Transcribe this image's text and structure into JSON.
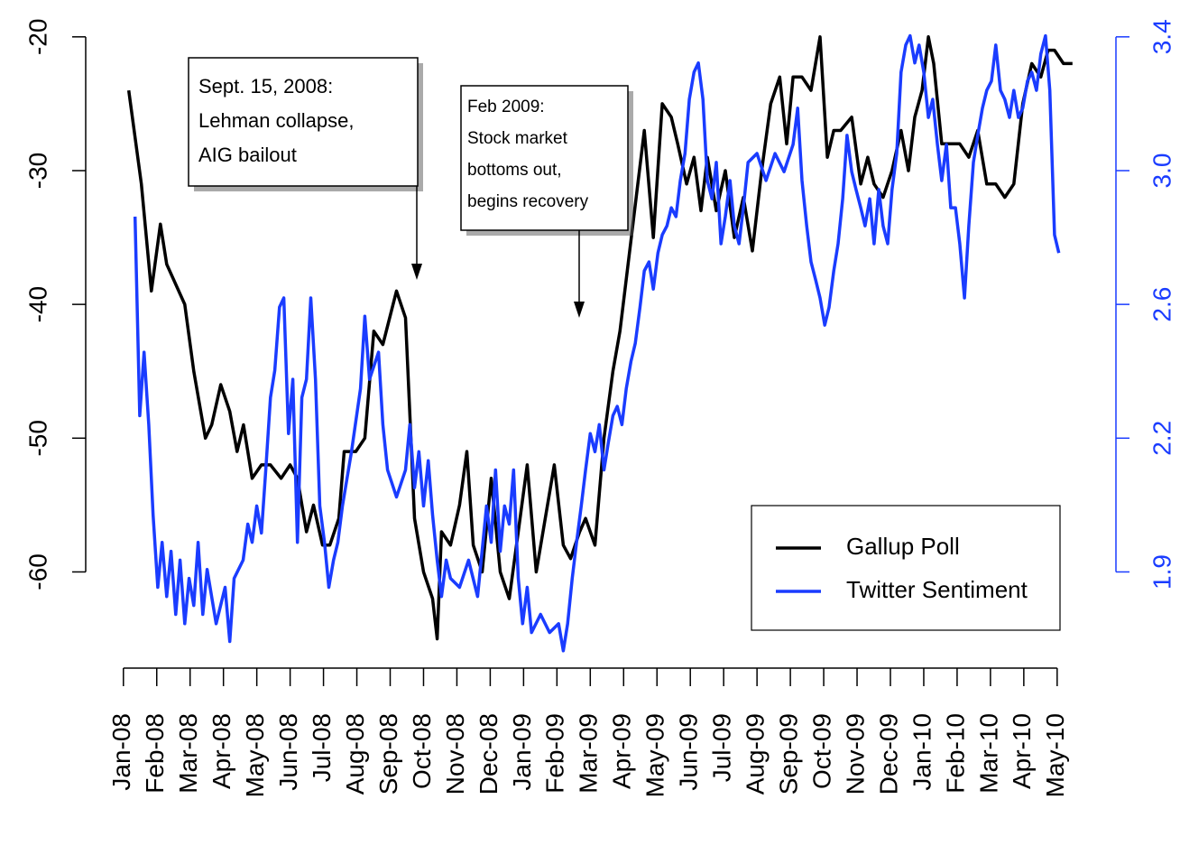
{
  "chart_data": {
    "type": "line",
    "xlim": [
      -0.4,
      28.6
    ],
    "xticks": [
      {
        "value": 0,
        "label": "Jan-08"
      },
      {
        "value": 1,
        "label": "Feb-08"
      },
      {
        "value": 2,
        "label": "Mar-08"
      },
      {
        "value": 3,
        "label": "Apr-08"
      },
      {
        "value": 4,
        "label": "May-08"
      },
      {
        "value": 5,
        "label": "Jun-08"
      },
      {
        "value": 6,
        "label": "Jul-08"
      },
      {
        "value": 7,
        "label": "Aug-08"
      },
      {
        "value": 8,
        "label": "Sep-08"
      },
      {
        "value": 9,
        "label": "Oct-08"
      },
      {
        "value": 10,
        "label": "Nov-08"
      },
      {
        "value": 11,
        "label": "Dec-08"
      },
      {
        "value": 12,
        "label": "Jan-09"
      },
      {
        "value": 13,
        "label": "Feb-09"
      },
      {
        "value": 14,
        "label": "Mar-09"
      },
      {
        "value": 15,
        "label": "Apr-09"
      },
      {
        "value": 16,
        "label": "May-09"
      },
      {
        "value": 17,
        "label": "Jun-09"
      },
      {
        "value": 18,
        "label": "Jul-09"
      },
      {
        "value": 19,
        "label": "Aug-09"
      },
      {
        "value": 20,
        "label": "Sep-09"
      },
      {
        "value": 21,
        "label": "Oct-09"
      },
      {
        "value": 22,
        "label": "Nov-09"
      },
      {
        "value": 23,
        "label": "Dec-09"
      },
      {
        "value": 24,
        "label": "Jan-10"
      },
      {
        "value": 25,
        "label": "Feb-10"
      },
      {
        "value": 26,
        "label": "Mar-10"
      },
      {
        "value": 27,
        "label": "Apr-10"
      },
      {
        "value": 28,
        "label": "May-10"
      }
    ],
    "ylim": [
      -68,
      -19
    ],
    "yticks": [
      -20,
      -30,
      -40,
      -50,
      -60
    ],
    "y2lim": [
      1.55,
      3.3875
    ],
    "y2ticks": [
      {
        "value": 3.35,
        "label": "3.4"
      },
      {
        "value": 2.975,
        "label": "3.0"
      },
      2.6,
      {
        "value": 2.225,
        "label": "2.2"
      },
      {
        "value": 1.85,
        "label": "1.9"
      }
    ],
    "y2color": "#1a3cff",
    "legend": "lower right",
    "series": [
      {
        "name": "Gallup Poll",
        "color": "#000000",
        "axis": "y",
        "x": [
          0.16,
          0.54,
          0.84,
          1.11,
          1.3,
          1.84,
          2.11,
          2.46,
          2.65,
          2.92,
          3.19,
          3.41,
          3.6,
          3.86,
          4.14,
          4.41,
          4.73,
          5.0,
          5.22,
          5.49,
          5.7,
          5.97,
          6.19,
          6.46,
          6.62,
          6.97,
          7.24,
          7.51,
          7.78,
          8.19,
          8.46,
          8.73,
          9.0,
          9.27,
          9.41,
          9.54,
          9.81,
          10.08,
          10.3,
          10.49,
          10.76,
          11.03,
          11.3,
          11.57,
          11.84,
          12.11,
          12.38,
          12.65,
          12.92,
          13.19,
          13.41,
          13.68,
          13.86,
          14.14,
          14.41,
          14.68,
          14.89,
          15.62,
          15.89,
          16.16,
          16.43,
          16.62,
          16.89,
          17.11,
          17.32,
          17.51,
          17.78,
          18.05,
          18.32,
          18.59,
          18.86,
          19.14,
          19.41,
          19.68,
          19.89,
          20.08,
          20.35,
          20.62,
          20.89,
          21.11,
          21.3,
          21.51,
          21.84,
          22.11,
          22.32,
          22.51,
          22.78,
          23.05,
          23.32,
          23.54,
          23.73,
          23.95,
          24.14,
          24.3,
          24.54,
          24.81,
          25.08,
          25.35,
          25.62,
          25.89,
          26.16,
          26.43,
          26.7,
          26.97,
          27.24,
          27.51,
          27.73,
          27.92,
          28.19,
          28.46
        ],
        "values": [
          -24,
          -31,
          -39,
          -34,
          -37,
          -40,
          -45,
          -50,
          -49,
          -46,
          -48,
          -51,
          -49,
          -53,
          -52,
          -52,
          -53,
          -52,
          -53,
          -57,
          -55,
          -58,
          -58,
          -56,
          -51,
          -51,
          -50,
          -42,
          -43,
          -39,
          -41,
          -56,
          -60,
          -62,
          -65,
          -57,
          -58,
          -55,
          -51,
          -58,
          -60,
          -53,
          -60,
          -62,
          -57,
          -52,
          -60,
          -56,
          -52,
          -58,
          -59,
          -57,
          -56,
          -58,
          -50,
          -45,
          -42,
          -27,
          -35,
          -25,
          -26,
          -28,
          -31,
          -29,
          -33,
          -29,
          -33,
          -30,
          -35,
          -32,
          -36,
          -30,
          -25,
          -23,
          -28,
          -23,
          -23,
          -24,
          -20,
          -29,
          -27,
          -27,
          -26,
          -31,
          -29,
          -31,
          -32,
          -30,
          -27,
          -30,
          -26,
          -24,
          -20,
          -22,
          -28,
          -28,
          -28,
          -29,
          -27,
          -31,
          -31,
          -32,
          -31,
          -25,
          -22,
          -23,
          -21,
          -21,
          -22,
          -22
        ]
      },
      {
        "name": "Twitter Sentiment",
        "color": "#1a3cff",
        "axis": "y2",
        "x": [
          0.35,
          0.49,
          0.62,
          0.76,
          0.89,
          1.03,
          1.16,
          1.3,
          1.43,
          1.57,
          1.7,
          1.84,
          1.97,
          2.11,
          2.24,
          2.38,
          2.51,
          2.78,
          3.05,
          3.19,
          3.32,
          3.59,
          3.73,
          3.86,
          4.0,
          4.14,
          4.27,
          4.41,
          4.54,
          4.68,
          4.81,
          4.95,
          5.08,
          5.22,
          5.35,
          5.49,
          5.62,
          5.76,
          5.89,
          6.03,
          6.16,
          6.3,
          6.43,
          6.57,
          6.84,
          7.11,
          7.24,
          7.38,
          7.65,
          7.78,
          7.92,
          8.19,
          8.46,
          8.59,
          8.73,
          8.86,
          9.0,
          9.14,
          9.27,
          9.41,
          9.54,
          9.68,
          9.81,
          10.08,
          10.35,
          10.62,
          10.89,
          11.03,
          11.16,
          11.3,
          11.43,
          11.57,
          11.7,
          11.84,
          11.97,
          12.11,
          12.24,
          12.51,
          12.78,
          13.05,
          13.19,
          13.32,
          13.46,
          13.59,
          13.73,
          13.86,
          14.0,
          14.14,
          14.27,
          14.41,
          14.54,
          14.68,
          14.81,
          14.95,
          15.08,
          15.22,
          15.35,
          15.49,
          15.62,
          15.76,
          15.89,
          16.03,
          16.16,
          16.3,
          16.43,
          16.57,
          16.7,
          16.84,
          16.97,
          17.11,
          17.24,
          17.38,
          17.51,
          17.65,
          17.78,
          17.92,
          18.05,
          18.19,
          18.32,
          18.46,
          18.59,
          18.73,
          19.0,
          19.27,
          19.54,
          19.81,
          20.08,
          20.22,
          20.35,
          20.49,
          20.62,
          20.76,
          20.89,
          21.03,
          21.16,
          21.3,
          21.43,
          21.57,
          21.7,
          21.84,
          21.97,
          22.11,
          22.24,
          22.38,
          22.51,
          22.65,
          22.78,
          22.92,
          23.05,
          23.19,
          23.32,
          23.46,
          23.59,
          23.73,
          23.86,
          24.0,
          24.14,
          24.27,
          24.41,
          24.54,
          24.68,
          24.81,
          24.95,
          25.08,
          25.22,
          25.35,
          25.49,
          25.62,
          25.76,
          25.89,
          26.03,
          26.16,
          26.3,
          26.43,
          26.57,
          26.7,
          26.84,
          26.97,
          27.11,
          27.24,
          27.38,
          27.51,
          27.65,
          27.78,
          27.92,
          28.05
        ],
        "values": [
          2.846,
          2.288,
          2.466,
          2.263,
          2.01,
          1.807,
          1.933,
          1.781,
          1.908,
          1.731,
          1.883,
          1.705,
          1.832,
          1.756,
          1.933,
          1.731,
          1.857,
          1.705,
          1.807,
          1.655,
          1.832,
          1.883,
          1.984,
          1.933,
          2.035,
          1.959,
          2.136,
          2.339,
          2.415,
          2.592,
          2.618,
          2.238,
          2.39,
          1.933,
          2.339,
          2.39,
          2.618,
          2.39,
          2.035,
          1.933,
          1.807,
          1.883,
          1.933,
          2.035,
          2.187,
          2.364,
          2.567,
          2.39,
          2.466,
          2.263,
          2.136,
          2.06,
          2.136,
          2.263,
          2.086,
          2.187,
          2.035,
          2.162,
          2.01,
          1.883,
          1.781,
          1.883,
          1.832,
          1.807,
          1.883,
          1.781,
          2.035,
          1.933,
          2.136,
          1.908,
          2.035,
          1.984,
          2.136,
          1.832,
          1.705,
          1.807,
          1.68,
          1.731,
          1.68,
          1.705,
          1.629,
          1.705,
          1.832,
          1.933,
          2.035,
          2.136,
          2.238,
          2.187,
          2.263,
          2.136,
          2.212,
          2.288,
          2.314,
          2.263,
          2.364,
          2.44,
          2.491,
          2.592,
          2.694,
          2.719,
          2.643,
          2.744,
          2.795,
          2.82,
          2.871,
          2.846,
          2.947,
          3.023,
          3.175,
          3.251,
          3.277,
          3.175,
          2.947,
          2.896,
          2.998,
          2.77,
          2.846,
          2.947,
          2.82,
          2.77,
          2.871,
          2.998,
          3.023,
          2.947,
          3.023,
          2.972,
          3.048,
          3.15,
          2.947,
          2.82,
          2.719,
          2.668,
          2.618,
          2.542,
          2.592,
          2.694,
          2.77,
          2.896,
          3.074,
          2.972,
          2.922,
          2.871,
          2.82,
          2.896,
          2.77,
          2.922,
          2.82,
          2.77,
          2.922,
          3.023,
          3.251,
          3.327,
          3.353,
          3.277,
          3.327,
          3.251,
          3.124,
          3.175,
          3.048,
          2.947,
          3.048,
          2.871,
          2.871,
          2.77,
          2.618,
          2.82,
          2.998,
          3.074,
          3.15,
          3.2,
          3.226,
          3.327,
          3.2,
          3.175,
          3.124,
          3.2,
          3.124,
          3.15,
          3.226,
          3.251,
          3.2,
          3.302,
          3.353,
          3.2,
          2.795,
          2.744
        ]
      }
    ],
    "annotations": [
      {
        "lines": [
          "Sept. 15, 2008:",
          "Lehman collapse,",
          "AIG bailout"
        ]
      },
      {
        "lines": [
          "Feb 2009:",
          "Stock market",
          "bottoms out,",
          "begins recovery"
        ]
      }
    ]
  }
}
